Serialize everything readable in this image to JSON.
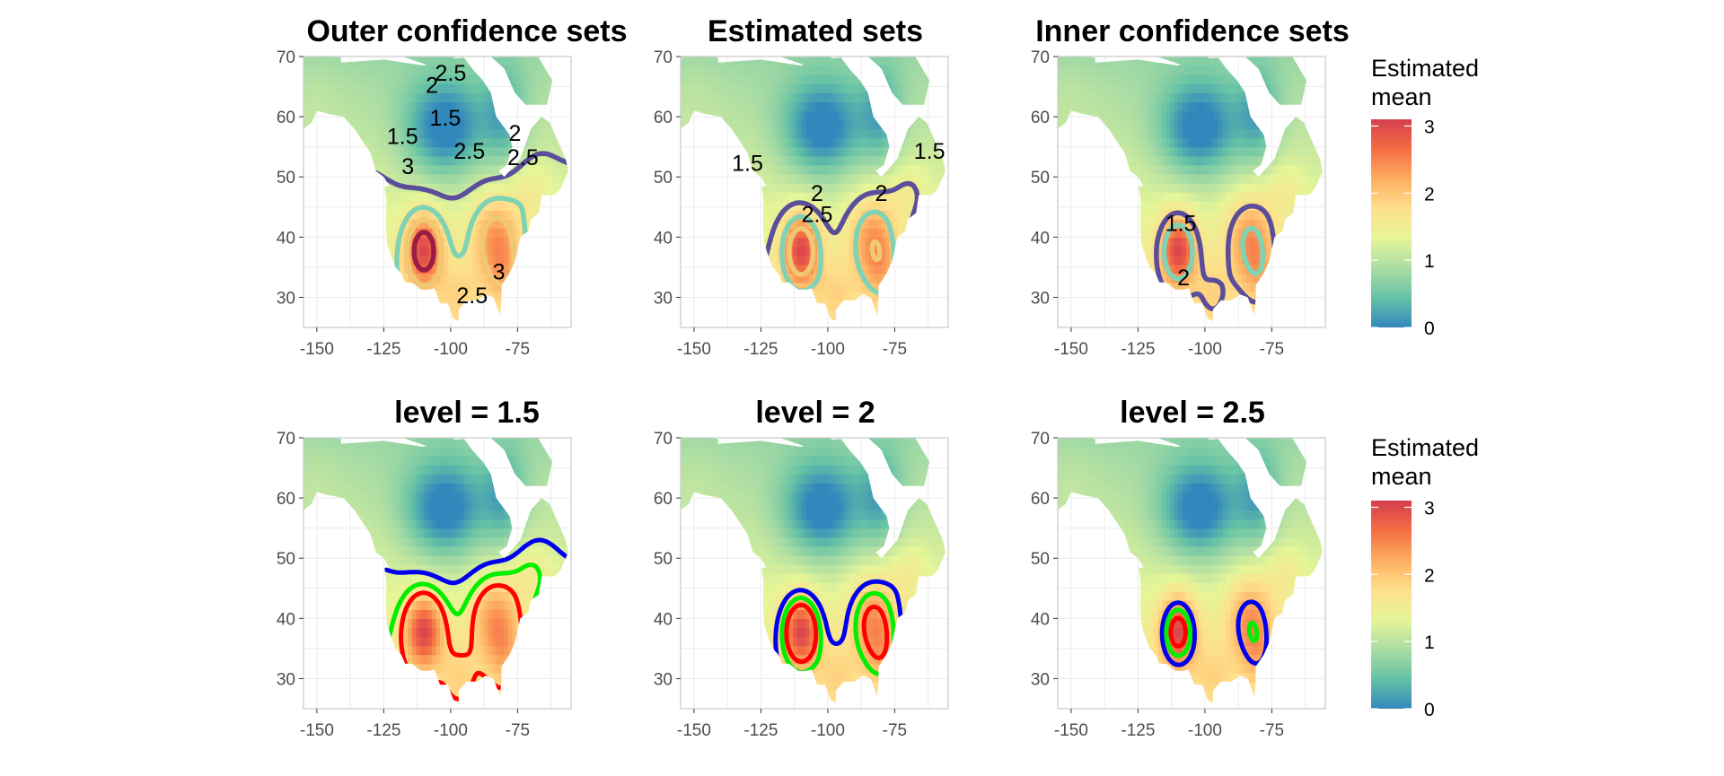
{
  "colors": {
    "outer_1.5": "#5a4e9a",
    "outer_2": "#7fd3b3",
    "outer_2.5": "#f0c773",
    "outer_3": "#9b1d45",
    "level_lower": "#0000ee",
    "level_est": "#00ee00",
    "level_upper": "#ff0000",
    "panel_border": "#cccccc",
    "grid": "#ebebeb",
    "scale": [
      "#3288bd",
      "#66c2a5",
      "#abdda4",
      "#e6f598",
      "#fee08b",
      "#fdae61",
      "#f46d43",
      "#d53e4f"
    ]
  },
  "legend": {
    "title_line1": "Estimated",
    "title_line2": " mean",
    "ticks": [
      "3",
      "2",
      "1",
      "0"
    ],
    "tick_values": [
      3,
      2,
      1,
      0
    ],
    "range": [
      0,
      3.1
    ]
  },
  "chart_data": [
    {
      "type": "heatmap",
      "title": "Outer confidence sets",
      "xlim": [
        -155,
        -55
      ],
      "ylim": [
        25,
        70
      ],
      "x_ticks": [
        -150,
        -125,
        -100,
        -75
      ],
      "y_ticks": [
        30,
        40,
        50,
        60,
        70
      ],
      "contour_levels": [
        1.5,
        2,
        2.5,
        3
      ],
      "contour_labels": [
        {
          "text": "2.5",
          "x": -100,
          "y": 66
        },
        {
          "text": "2",
          "x": -107,
          "y": 64
        },
        {
          "text": "1.5",
          "x": -102,
          "y": 58.5
        },
        {
          "text": "2",
          "x": -76,
          "y": 56
        },
        {
          "text": "1.5",
          "x": -118,
          "y": 55.5
        },
        {
          "text": "2.5",
          "x": -93,
          "y": 53
        },
        {
          "text": "2.5",
          "x": -73,
          "y": 52
        },
        {
          "text": "3",
          "x": -116,
          "y": 50.5
        },
        {
          "text": "3",
          "x": -82,
          "y": 33
        },
        {
          "text": "2.5",
          "x": -92,
          "y": 29
        }
      ]
    },
    {
      "type": "heatmap",
      "title": "Estimated sets",
      "xlim": [
        -155,
        -55
      ],
      "ylim": [
        25,
        70
      ],
      "x_ticks": [
        -150,
        -125,
        -100,
        -75
      ],
      "y_ticks": [
        30,
        40,
        50,
        60,
        70
      ],
      "contour_levels": [
        1.5,
        2,
        2.5
      ],
      "contour_labels": [
        {
          "text": "1.5",
          "x": -130,
          "y": 51
        },
        {
          "text": "1.5",
          "x": -62,
          "y": 53
        },
        {
          "text": "2",
          "x": -80,
          "y": 46
        },
        {
          "text": "2",
          "x": -104,
          "y": 46
        },
        {
          "text": "2.5",
          "x": -104,
          "y": 42.5
        }
      ]
    },
    {
      "type": "heatmap",
      "title": "Inner confidence sets",
      "xlim": [
        -155,
        -55
      ],
      "ylim": [
        25,
        70
      ],
      "x_ticks": [
        -150,
        -125,
        -100,
        -75
      ],
      "y_ticks": [
        30,
        40,
        50,
        60,
        70
      ],
      "contour_levels": [
        1.5,
        2
      ],
      "contour_labels": [
        {
          "text": "1.5",
          "x": -109,
          "y": 41
        },
        {
          "text": "2",
          "x": -108,
          "y": 32
        }
      ]
    },
    {
      "type": "heatmap",
      "title": "level = 1.5",
      "xlim": [
        -155,
        -55
      ],
      "ylim": [
        25,
        70
      ],
      "x_ticks": [
        -150,
        -125,
        -100,
        -75
      ],
      "y_ticks": [
        30,
        40,
        50,
        60,
        70
      ],
      "level": 1.5
    },
    {
      "type": "heatmap",
      "title": "level = 2",
      "xlim": [
        -155,
        -55
      ],
      "ylim": [
        25,
        70
      ],
      "x_ticks": [
        -150,
        -125,
        -100,
        -75
      ],
      "y_ticks": [
        30,
        40,
        50,
        60,
        70
      ],
      "level": 2
    },
    {
      "type": "heatmap",
      "title": "level = 2.5",
      "xlim": [
        -155,
        -55
      ],
      "ylim": [
        25,
        70
      ],
      "x_ticks": [
        -150,
        -125,
        -100,
        -75
      ],
      "y_ticks": [
        30,
        40,
        50,
        60,
        70
      ],
      "level": 2.5
    }
  ]
}
